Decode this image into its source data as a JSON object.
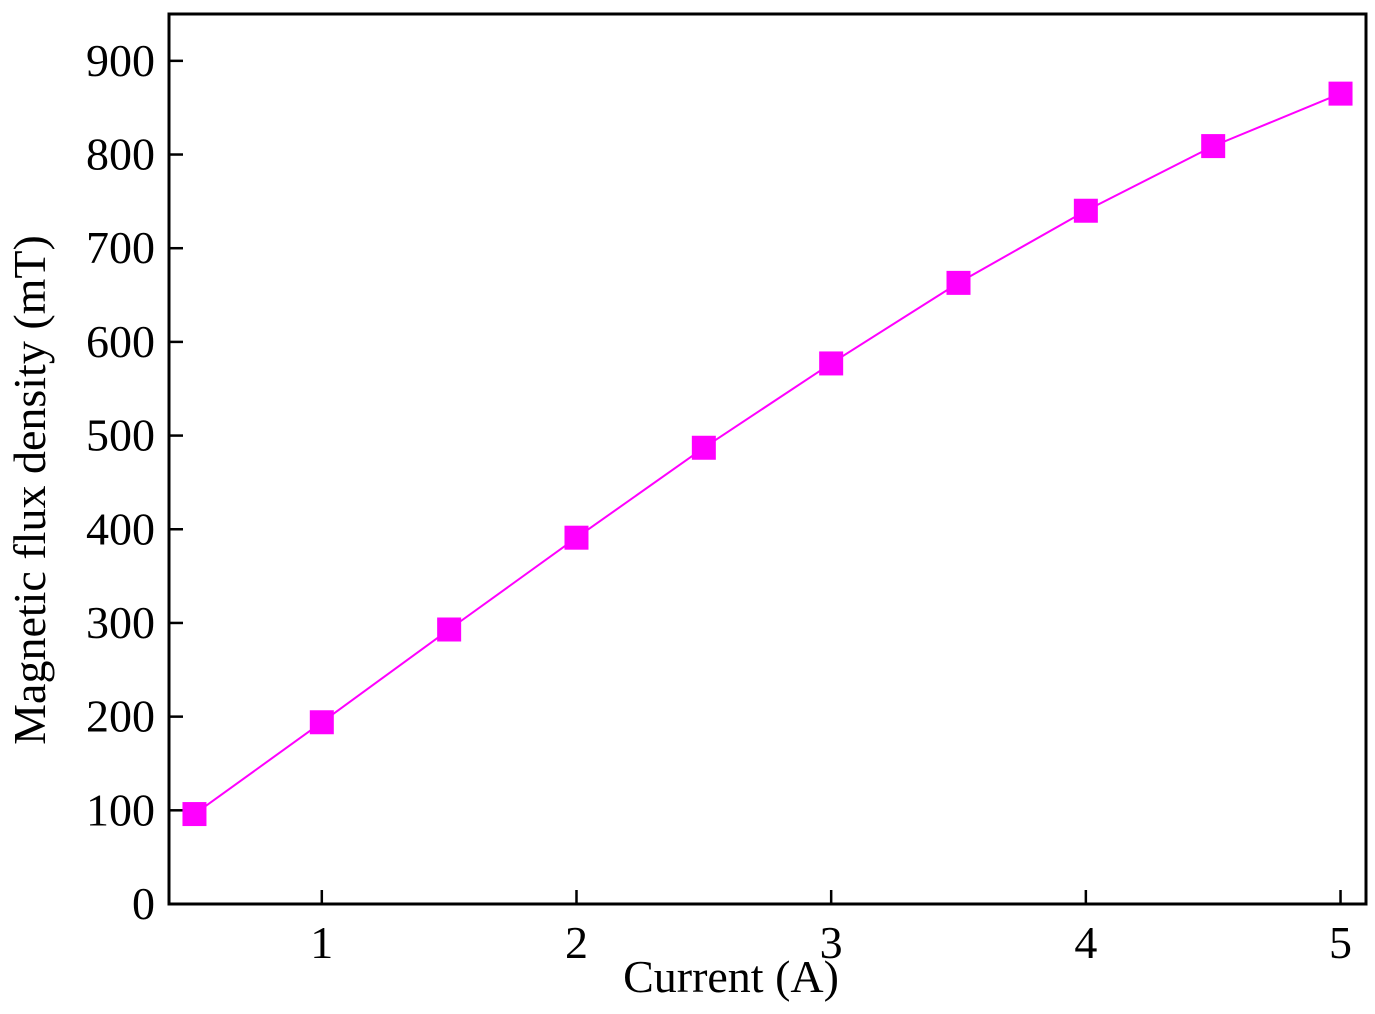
{
  "chart_data": {
    "type": "line",
    "title": "",
    "xlabel": "Current (A)",
    "ylabel": "Magnetic flux density (mT)",
    "xlim": [
      0.4,
      5.1
    ],
    "ylim": [
      0,
      950
    ],
    "x_ticks": [
      1,
      2,
      3,
      4,
      5
    ],
    "x_tick_labels": [
      "1",
      "2",
      "3",
      "4",
      "5"
    ],
    "y_ticks": [
      0,
      100,
      200,
      300,
      400,
      500,
      600,
      700,
      800,
      900
    ],
    "y_tick_labels": [
      "0",
      "100",
      "200",
      "300",
      "400",
      "500",
      "600",
      "700",
      "800",
      "900"
    ],
    "grid": false,
    "legend": "none",
    "series": [
      {
        "color": "#ff00ff",
        "marker": "square",
        "x": [
          0.5,
          1.0,
          1.5,
          2.0,
          2.5,
          3.0,
          3.5,
          4.0,
          4.5,
          5.0
        ],
        "y": [
          96,
          194,
          293,
          391,
          487,
          577,
          663,
          740,
          809,
          865
        ]
      }
    ]
  }
}
